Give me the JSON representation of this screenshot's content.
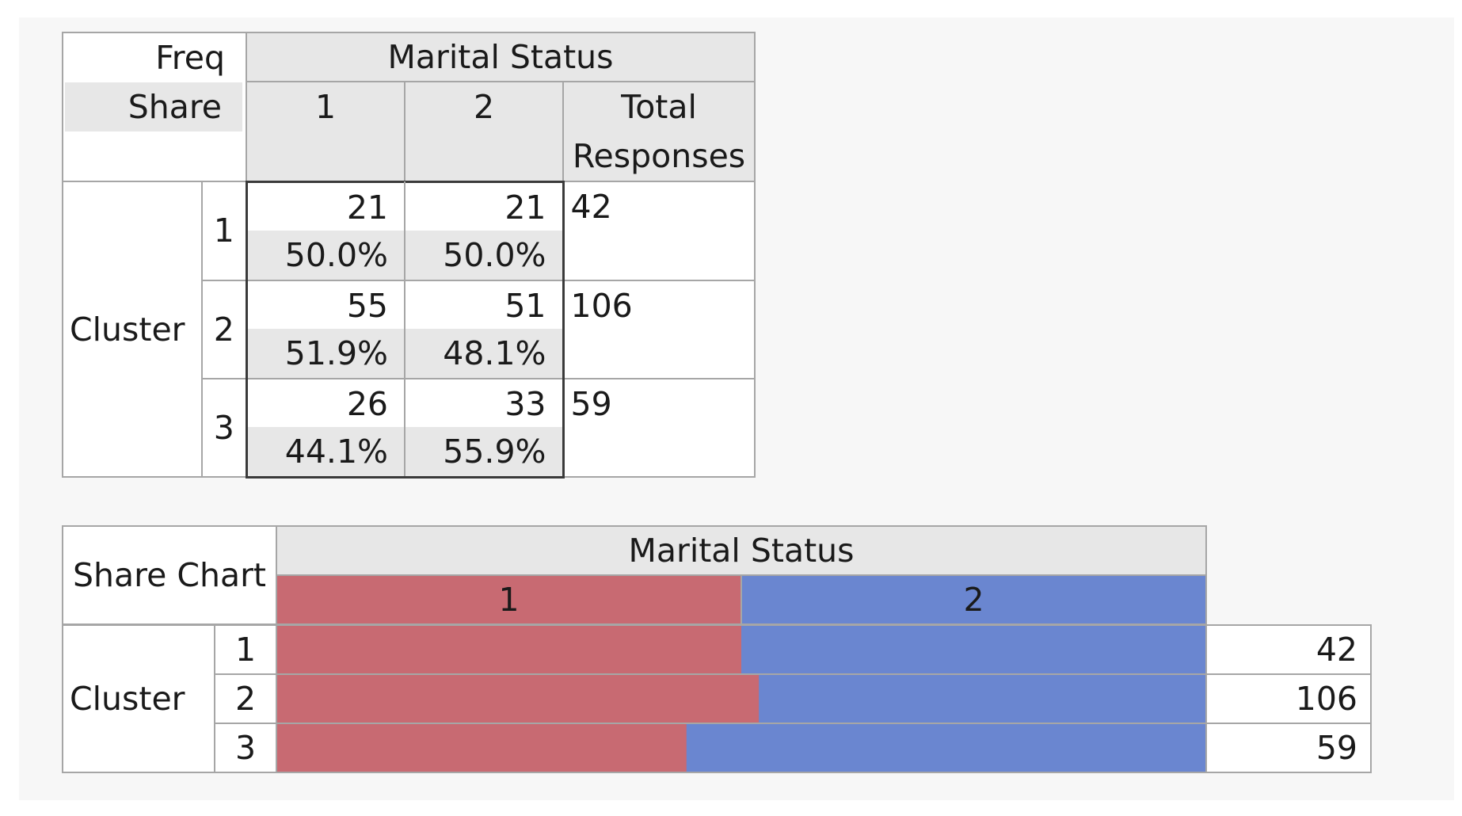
{
  "crosstab": {
    "corner_freq": "Freq",
    "corner_share": "Share",
    "column_group": "Marital Status",
    "columns": [
      "1",
      "2"
    ],
    "total_header_line1": "Total",
    "total_header_line2": "Responses",
    "row_group": "Cluster",
    "rows": [
      {
        "label": "1",
        "freq": [
          "21",
          "21"
        ],
        "share": [
          "50.0%",
          "50.0%"
        ],
        "total": "42"
      },
      {
        "label": "2",
        "freq": [
          "55",
          "51"
        ],
        "share": [
          "51.9%",
          "48.1%"
        ],
        "total": "106"
      },
      {
        "label": "3",
        "freq": [
          "26",
          "33"
        ],
        "share": [
          "44.1%",
          "55.9%"
        ],
        "total": "59"
      }
    ]
  },
  "share_chart": {
    "corner": "Share Chart",
    "column_group": "Marital Status",
    "levels": [
      "1",
      "2"
    ],
    "row_group": "Cluster",
    "colors": {
      "level_1": "#c86a72",
      "level_2": "#6a86d0"
    },
    "rows": [
      {
        "label": "1",
        "count": "42"
      },
      {
        "label": "2",
        "count": "106"
      },
      {
        "label": "3",
        "count": "59"
      }
    ]
  },
  "chart_data": {
    "type": "bar",
    "stacked": true,
    "orientation": "horizontal",
    "categories": [
      "1",
      "2",
      "3"
    ],
    "series": [
      {
        "name": "1",
        "values": [
          0.5,
          0.519,
          0.441
        ]
      },
      {
        "name": "2",
        "values": [
          0.5,
          0.481,
          0.559
        ]
      }
    ],
    "xlim": [
      0,
      1
    ]
  }
}
